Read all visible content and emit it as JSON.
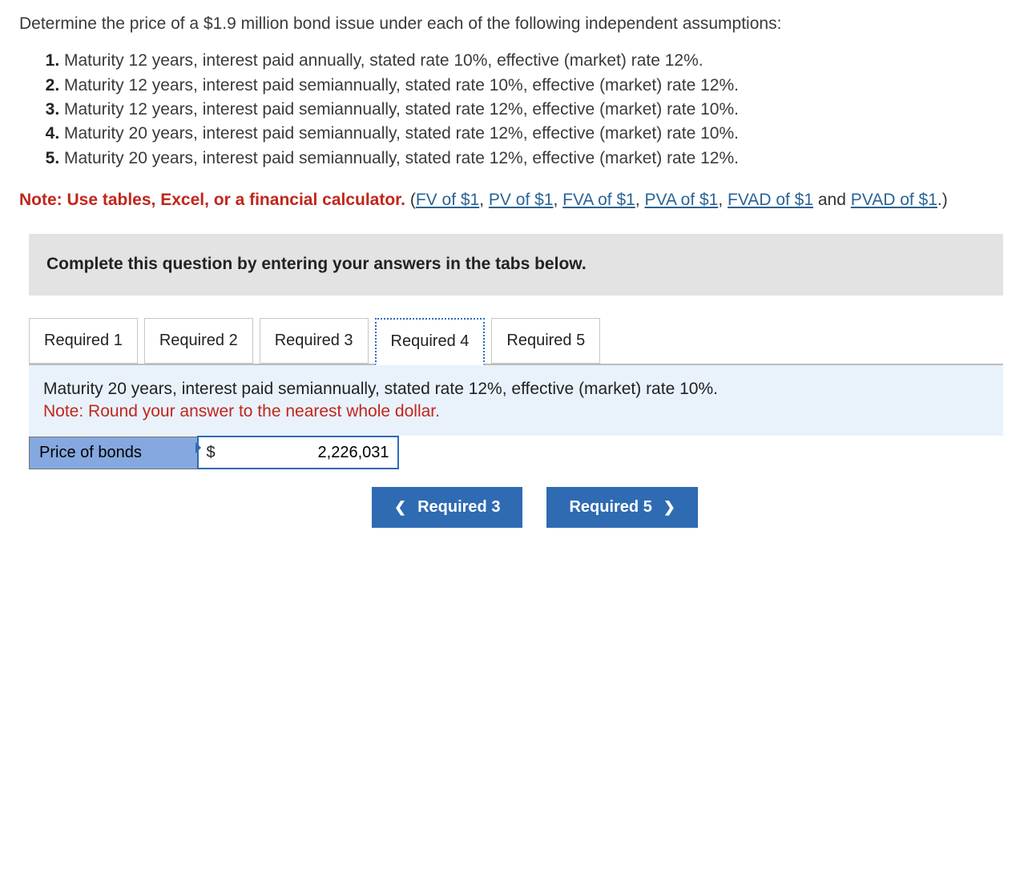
{
  "intro": "Determine the price of a $1.9 million bond issue under each of the following independent assumptions:",
  "assumptions": [
    "Maturity 12 years, interest paid annually, stated rate 10%, effective (market) rate 12%.",
    "Maturity 12 years, interest paid semiannually, stated rate 10%, effective (market) rate 12%.",
    "Maturity 12 years, interest paid semiannually, stated rate 12%, effective (market) rate 10%.",
    "Maturity 20 years, interest paid semiannually, stated rate 12%, effective (market) rate 10%.",
    "Maturity 20 years, interest paid semiannually, stated rate 12%, effective (market) rate 12%."
  ],
  "note": {
    "prefix": "Note: Use tables, Excel, or a financial calculator.",
    "links": [
      "FV of $1",
      "PV of $1",
      "FVA of $1",
      "PVA of $1",
      "FVAD of $1",
      "PVAD of $1"
    ]
  },
  "instruct": "Complete this question by entering your answers in the tabs below.",
  "tabs": [
    {
      "label": "Required 1"
    },
    {
      "label": "Required 2"
    },
    {
      "label": "Required 3"
    },
    {
      "label": "Required 4"
    },
    {
      "label": "Required 5"
    }
  ],
  "activeTabIndex": 3,
  "tabContent": {
    "desc": "Maturity 20 years, interest paid semiannually, stated rate 12%, effective (market) rate 10%.",
    "noteRed": "Note: Round your answer to the nearest whole dollar."
  },
  "answer": {
    "label": "Price of bonds",
    "currency": "$",
    "value": "2,226,031"
  },
  "nav": {
    "prev": "Required 3",
    "next": "Required 5"
  },
  "colors": {
    "link": "#2a6496",
    "red": "#c1261b",
    "tabActiveBorder": "#2a6bc0",
    "headerBg": "#e3e3e3",
    "contentBg": "#e9f2fb",
    "labelCellBg": "#85a8e0",
    "btnBg": "#2f6bb3"
  }
}
